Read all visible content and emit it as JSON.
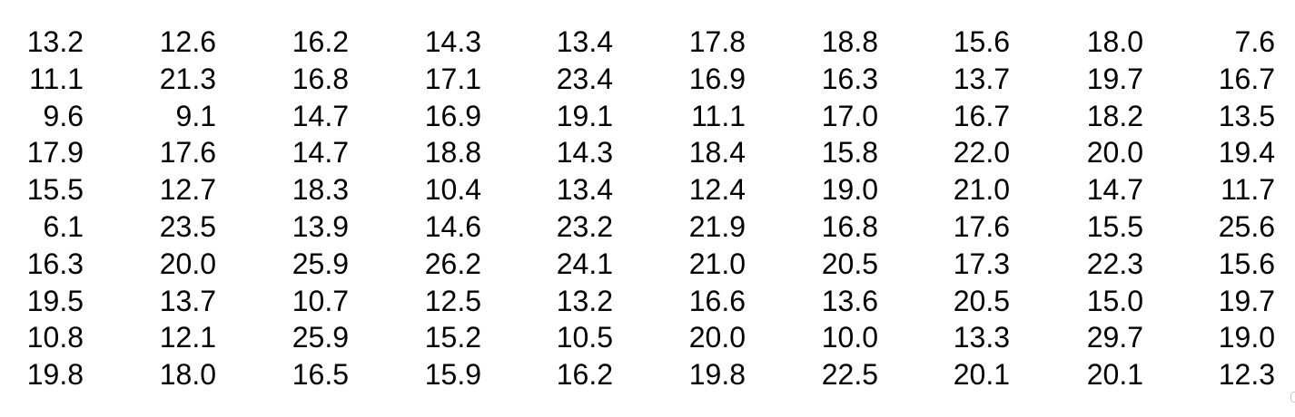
{
  "table": {
    "rows": [
      [
        "13.2",
        "12.6",
        "16.2",
        "14.3",
        "13.4",
        "17.8",
        "18.8",
        "15.6",
        "18.0",
        "7.6"
      ],
      [
        "11.1",
        "21.3",
        "16.8",
        "17.1",
        "23.4",
        "16.9",
        "16.3",
        "13.7",
        "19.7",
        "16.7"
      ],
      [
        "9.6",
        "9.1",
        "14.7",
        "16.9",
        "19.1",
        "11.1",
        "17.0",
        "16.7",
        "18.2",
        "13.5"
      ],
      [
        "17.9",
        "17.6",
        "14.7",
        "18.8",
        "14.3",
        "18.4",
        "15.8",
        "22.0",
        "20.0",
        "19.4"
      ],
      [
        "15.5",
        "12.7",
        "18.3",
        "10.4",
        "13.4",
        "12.4",
        "19.0",
        "21.0",
        "14.7",
        "11.7"
      ],
      [
        "6.1",
        "23.5",
        "13.9",
        "14.6",
        "23.2",
        "21.9",
        "16.8",
        "17.6",
        "15.5",
        "25.6"
      ],
      [
        "16.3",
        "20.0",
        "25.9",
        "26.2",
        "24.1",
        "21.0",
        "20.5",
        "17.3",
        "22.3",
        "15.6"
      ],
      [
        "19.5",
        "13.7",
        "10.7",
        "12.5",
        "13.2",
        "16.6",
        "13.6",
        "20.5",
        "15.0",
        "19.7"
      ],
      [
        "10.8",
        "12.1",
        "25.9",
        "15.2",
        "10.5",
        "20.0",
        "10.0",
        "13.3",
        "29.7",
        "19.0"
      ],
      [
        "19.8",
        "18.0",
        "16.5",
        "15.9",
        "16.2",
        "19.8",
        "22.5",
        "20.1",
        "20.1",
        "12.3"
      ]
    ]
  }
}
